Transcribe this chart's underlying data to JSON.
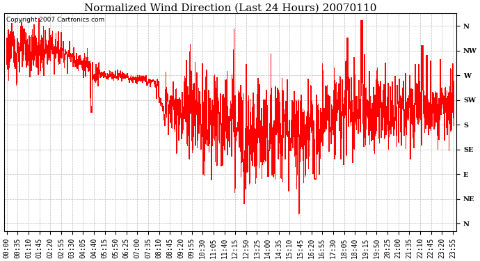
{
  "title": "Normalized Wind Direction (Last 24 Hours) 20070110",
  "copyright_text": "Copyright 2007 Cartronics.com",
  "line_color": "#FF0000",
  "background_color": "#FFFFFF",
  "plot_bg_color": "#FFFFFF",
  "grid_color": "#BBBBBB",
  "ytick_labels": [
    "N",
    "NW",
    "W",
    "SW",
    "S",
    "SE",
    "E",
    "NE",
    "N"
  ],
  "ytick_values": [
    8,
    7,
    6,
    5,
    4,
    3,
    2,
    1,
    0
  ],
  "ylim": [
    -0.3,
    8.5
  ],
  "title_fontsize": 11,
  "tick_fontsize": 7,
  "copyright_fontsize": 6.5,
  "xtick_interval_minutes": 35,
  "figsize": [
    6.9,
    3.75
  ],
  "dpi": 100
}
